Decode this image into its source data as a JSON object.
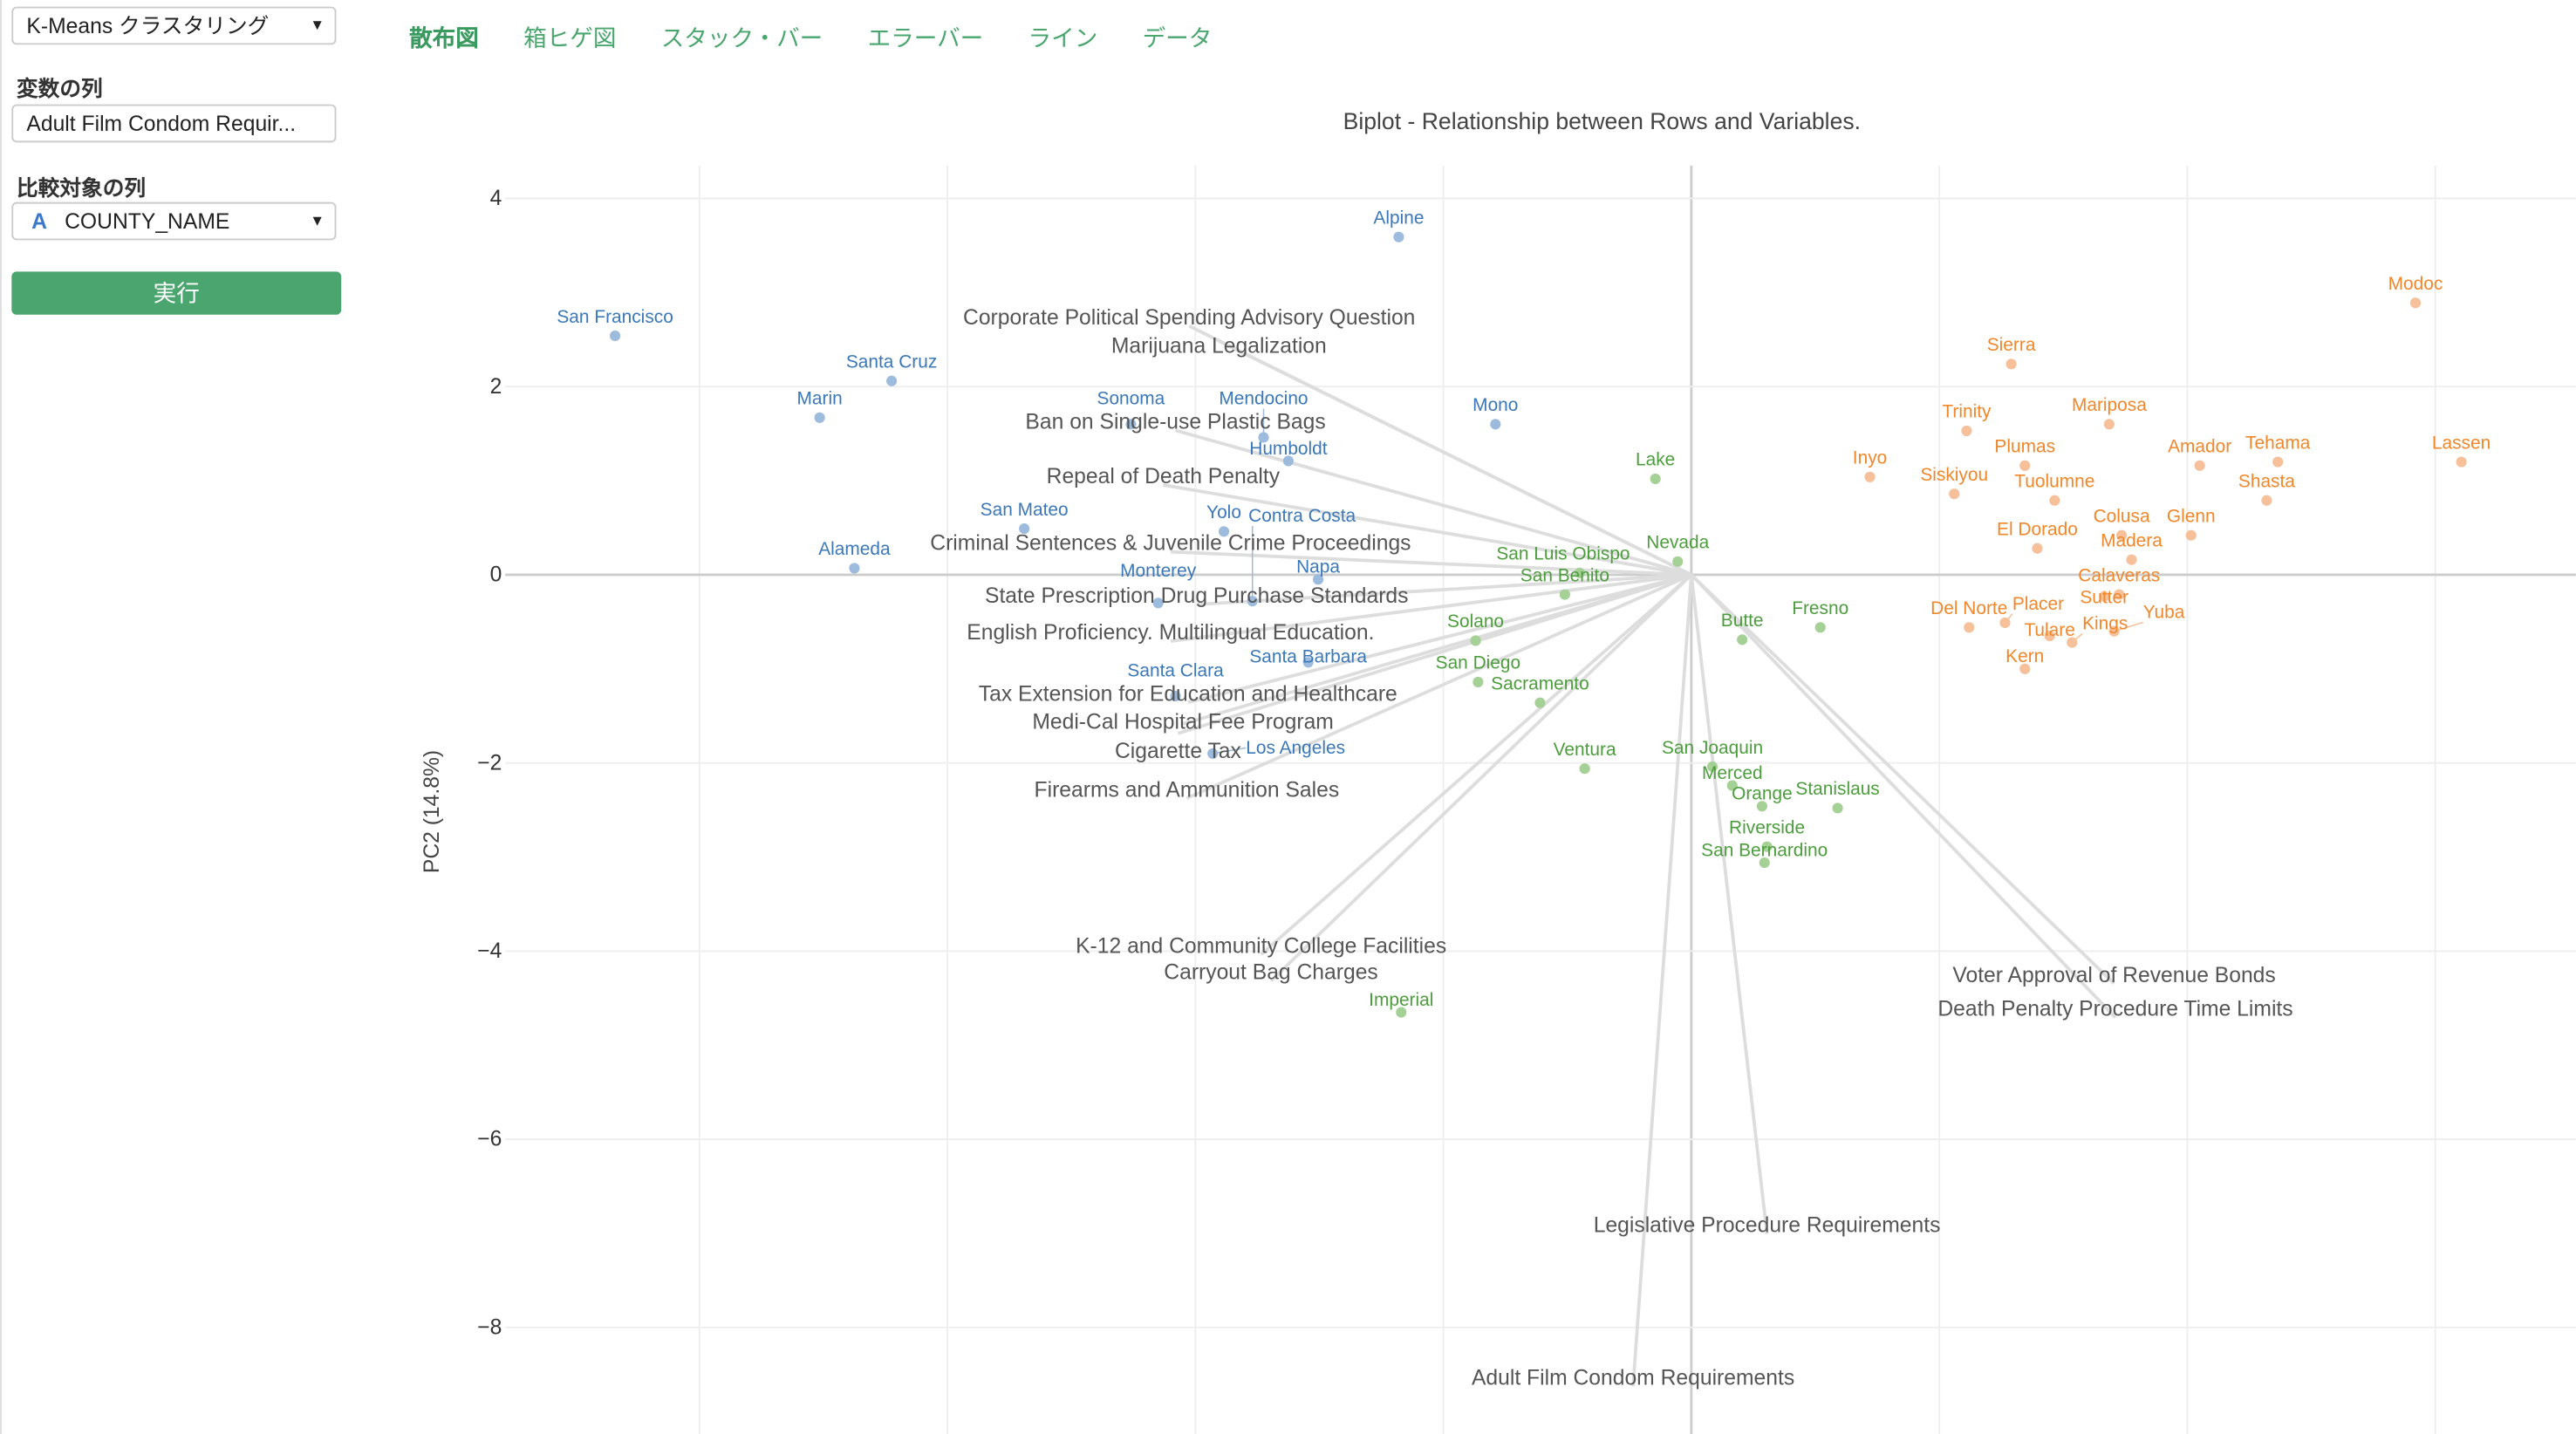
{
  "sidebar": {
    "analysis_select": "K-Means クラスタリング",
    "variables_label": "変数の列",
    "variables_value": "Adult Film Condom Requir...",
    "compare_label": "比較対象の列",
    "compare_type_icon": "A",
    "compare_value": "COUNTY_NAME",
    "run_button": "実行"
  },
  "tabs": [
    {
      "label": "散布図",
      "active": true
    },
    {
      "label": "箱ヒゲ図"
    },
    {
      "label": "スタック・バー"
    },
    {
      "label": "エラーバー"
    },
    {
      "label": "ライン"
    },
    {
      "label": "データ"
    }
  ],
  "chart_data": {
    "type": "scatter",
    "title": "Biplot - Relationship between Rows and Variables.",
    "xlabel": "",
    "ylabel": "PC2 (14.8%)",
    "ylim": [
      -8.9,
      4.4
    ],
    "xlim": [
      -9.8,
      7.1
    ],
    "yticks": [
      4,
      2,
      0,
      -2,
      -4,
      -6,
      -8
    ],
    "grid": true,
    "series": [
      {
        "color": "#3b78b8",
        "dot_color": "#9dbbdc",
        "points": [
          {
            "label": "San Francisco",
            "x": -8.68,
            "y": 2.54
          },
          {
            "label": "Santa Cruz",
            "x": -6.45,
            "y": 2.06
          },
          {
            "label": "Marin",
            "x": -7.03,
            "y": 1.67
          },
          {
            "label": "Alpine",
            "x": -2.36,
            "y": 3.59
          },
          {
            "label": "Sonoma",
            "x": -4.52,
            "y": 1.6
          },
          {
            "label": "Mendocino",
            "x": -3.45,
            "y": 1.46
          },
          {
            "label": "Humboldt",
            "x": -3.25,
            "y": 1.21
          },
          {
            "label": "Mono",
            "x": -1.58,
            "y": 1.6
          },
          {
            "label": "San Mateo",
            "x": -5.38,
            "y": 0.49
          },
          {
            "label": "Yolo",
            "x": -3.77,
            "y": 0.46
          },
          {
            "label": "Alameda",
            "x": -6.75,
            "y": 0.07
          },
          {
            "label": "Napa",
            "x": -3.01,
            "y": -0.05
          },
          {
            "label": "Monterey",
            "x": -4.3,
            "y": -0.3
          },
          {
            "label": "Contra Costa",
            "x": -3.54,
            "y": -0.28
          },
          {
            "label": "Santa Barbara",
            "x": -3.09,
            "y": -0.93
          },
          {
            "label": "Santa Clara",
            "x": -4.16,
            "y": -1.29
          },
          {
            "label": "Los Angeles",
            "x": -3.86,
            "y": -1.9
          }
        ]
      },
      {
        "color": "#4c9e3c",
        "dot_color": "#a5d096",
        "points": [
          {
            "label": "Lake",
            "x": -0.29,
            "y": 1.02
          },
          {
            "label": "Nevada",
            "x": -0.11,
            "y": 0.14
          },
          {
            "label": "San Luis Obispo",
            "x": -0.9,
            "y": 0.02
          },
          {
            "label": "San Benito",
            "x": -1.02,
            "y": -0.21
          },
          {
            "label": "Solano",
            "x": -1.74,
            "y": -0.7
          },
          {
            "label": "San Diego",
            "x": -1.72,
            "y": -1.14
          },
          {
            "label": "Sacramento",
            "x": -1.22,
            "y": -1.36
          },
          {
            "label": "Butte",
            "x": 0.41,
            "y": -0.69
          },
          {
            "label": "Fresno",
            "x": 1.04,
            "y": -0.56
          },
          {
            "label": "Ventura",
            "x": -0.86,
            "y": -2.06
          },
          {
            "label": "San Joaquin",
            "x": 0.17,
            "y": -2.04
          },
          {
            "label": "Merced",
            "x": 0.33,
            "y": -2.24
          },
          {
            "label": "Orange",
            "x": 0.57,
            "y": -2.46
          },
          {
            "label": "Stanislaus",
            "x": 1.18,
            "y": -2.48
          },
          {
            "label": "Riverside",
            "x": 0.61,
            "y": -2.89
          },
          {
            "label": "San Bernardino",
            "x": 0.59,
            "y": -3.06
          },
          {
            "label": "Imperial",
            "x": -2.34,
            "y": -4.65
          }
        ]
      },
      {
        "color": "#f0872a",
        "dot_color": "#f5c09a",
        "points": [
          {
            "label": "Modoc",
            "x": 5.84,
            "y": 2.89
          },
          {
            "label": "Sierra",
            "x": 2.58,
            "y": 2.24
          },
          {
            "label": "Trinity",
            "x": 2.22,
            "y": 1.53
          },
          {
            "label": "Mariposa",
            "x": 3.37,
            "y": 1.6
          },
          {
            "label": "Plumas",
            "x": 2.69,
            "y": 1.16
          },
          {
            "label": "Amador",
            "x": 4.1,
            "y": 1.16
          },
          {
            "label": "Tehama",
            "x": 4.73,
            "y": 1.2
          },
          {
            "label": "Lassen",
            "x": 6.21,
            "y": 1.2
          },
          {
            "label": "Inyo",
            "x": 1.44,
            "y": 1.04
          },
          {
            "label": "Siskiyou",
            "x": 2.12,
            "y": 0.86
          },
          {
            "label": "Tuolumne",
            "x": 2.93,
            "y": 0.79
          },
          {
            "label": "Shasta",
            "x": 4.64,
            "y": 0.79
          },
          {
            "label": "Colusa",
            "x": 3.47,
            "y": 0.42
          },
          {
            "label": "Glenn",
            "x": 4.03,
            "y": 0.42
          },
          {
            "label": "El Dorado",
            "x": 2.79,
            "y": 0.28
          },
          {
            "label": "Madera",
            "x": 3.55,
            "y": 0.16
          },
          {
            "label": "Calaveras",
            "x": 3.45,
            "y": -0.21
          },
          {
            "label": "Sutter",
            "x": 3.33,
            "y": -0.23
          },
          {
            "label": "Del Norte",
            "x": 2.24,
            "y": -0.56
          },
          {
            "label": "Placer",
            "x": 2.53,
            "y": -0.51
          },
          {
            "label": "Tulare",
            "x": 2.89,
            "y": -0.65
          },
          {
            "label": "Kings",
            "x": 3.07,
            "y": -0.72
          },
          {
            "label": "Yuba",
            "x": 3.41,
            "y": -0.6
          },
          {
            "label": "Kern",
            "x": 2.69,
            "y": -1.0
          }
        ]
      }
    ],
    "vectors": [
      {
        "label": "Corporate Political Spending Advisory Question",
        "x": -4.05,
        "y": 2.75
      },
      {
        "label": "Marijuana Legalization",
        "x": -3.81,
        "y": 2.59
      },
      {
        "label": "Ban on Single-use Plastic Bags",
        "x": -4.16,
        "y": 1.64
      },
      {
        "label": "Repeal of Death Penalty",
        "x": -4.26,
        "y": 1.06
      },
      {
        "label": "Criminal Sentences & Juvenile Crime Proceedings",
        "x": -4.2,
        "y": 0.35
      },
      {
        "label": "State Prescription Drug Purchase Standards",
        "x": -3.99,
        "y": -0.21
      },
      {
        "label": "English Proficiency. Multilingual Education.",
        "x": -4.2,
        "y": -0.6
      },
      {
        "label": "Tax Extension for Education and Healthcare",
        "x": -4.06,
        "y": -1.25
      },
      {
        "label": "Medi-Cal Hospital Fee Program",
        "x": -4.1,
        "y": -1.48
      },
      {
        "label": "Cigarette Tax",
        "x": -4.14,
        "y": -1.58
      },
      {
        "label": "Firearms and Ammunition Sales",
        "x": -4.07,
        "y": -2.27
      },
      {
        "label": "K-12 and Community College Facilities",
        "x": -3.47,
        "y": -3.93
      },
      {
        "label": "Carryout Bag Charges",
        "x": -3.39,
        "y": -4.21
      },
      {
        "label": "Voter Approval of Revenue Bonds",
        "x": 3.41,
        "y": -4.24
      },
      {
        "label": "Death Penalty Procedure Time Limits",
        "x": 3.42,
        "y": -4.6
      },
      {
        "label": "Legislative Procedure Requirements",
        "x": 0.61,
        "y": -6.9
      },
      {
        "label": "Adult Film Condom Requirements",
        "x": -0.47,
        "y": -8.52
      }
    ]
  }
}
